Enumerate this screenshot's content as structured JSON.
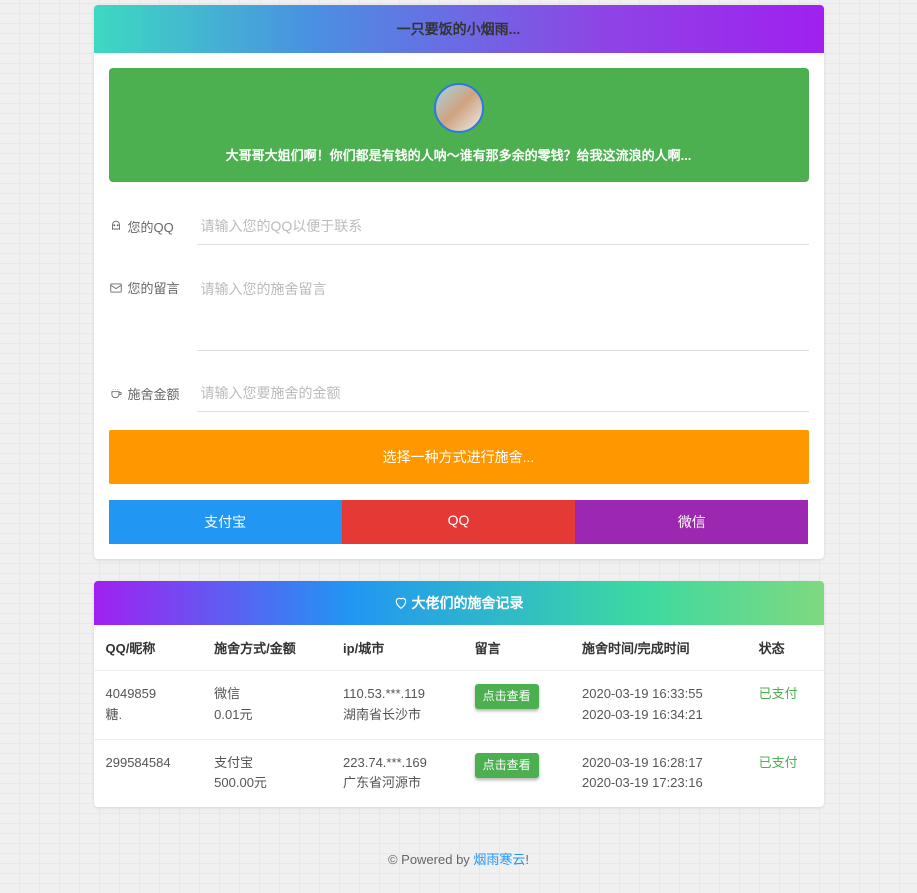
{
  "header": {
    "title": "一只要饭的小烟雨..."
  },
  "banner": {
    "text": "大哥哥大姐们啊！你们都是有钱的人呐～谁有那多余的零钱？给我这流浪的人啊..."
  },
  "form": {
    "qq_label": "您的QQ",
    "qq_placeholder": "请输入您的QQ以便于联系",
    "msg_label": "您的留言",
    "msg_placeholder": "请输入您的施舍留言",
    "amount_label": "施舍金额",
    "amount_placeholder": "请输入您要施舍的金额"
  },
  "submit_button": "选择一种方式进行施舍...",
  "pay": {
    "alipay": "支付宝",
    "qq": "QQ",
    "wechat": "微信"
  },
  "records": {
    "title": "大佬们的施舍记录",
    "columns": {
      "qq": "QQ/昵称",
      "method": "施舍方式/金额",
      "ip": "ip/城市",
      "msg": "留言",
      "time": "施舍时间/完成时间",
      "status": "状态"
    },
    "view_button": "点击查看",
    "rows": [
      {
        "qq": "4049859",
        "nick": "糖.",
        "method": "微信",
        "amount": "0.01元",
        "ip": "110.53.***.119",
        "city": "湖南省长沙市",
        "time1": "2020-03-19 16:33:55",
        "time2": "2020-03-19 16:34:21",
        "status": "已支付"
      },
      {
        "qq": "299584584",
        "nick": "",
        "method": "支付宝",
        "amount": "500.00元",
        "ip": "223.74.***.169",
        "city": "广东省河源市",
        "time1": "2020-03-19 16:28:17",
        "time2": "2020-03-19 17:23:16",
        "status": "已支付"
      }
    ]
  },
  "footer": {
    "prefix": "© Powered by ",
    "link": "烟雨寒云",
    "suffix": "!"
  }
}
